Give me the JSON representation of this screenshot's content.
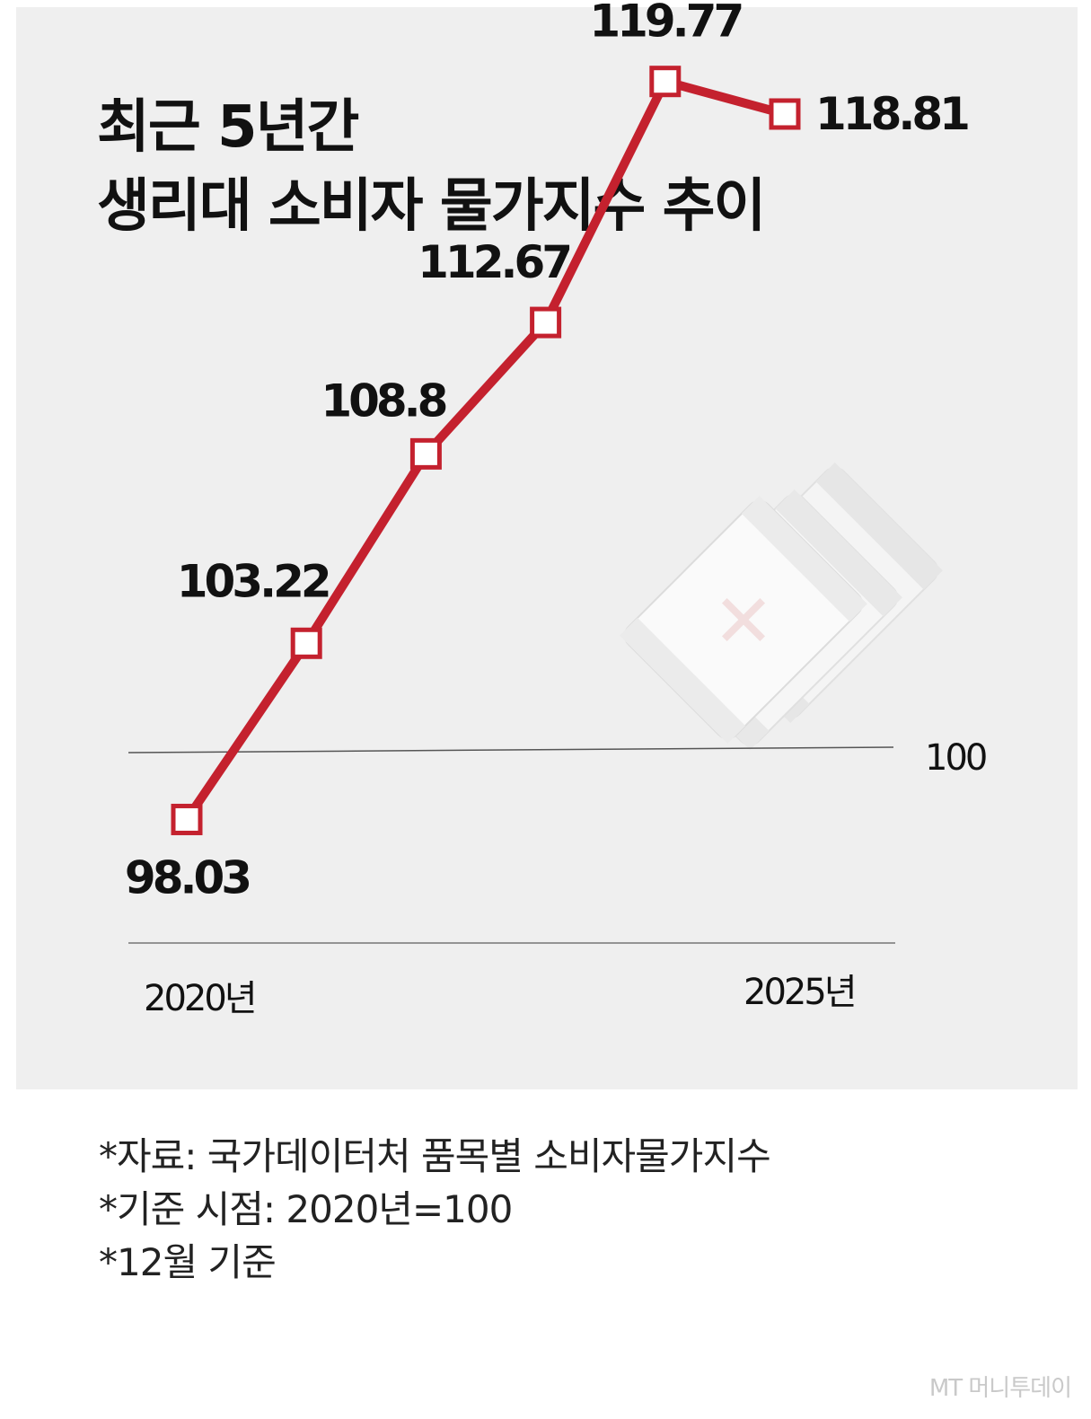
{
  "title": {
    "line1": "최근 5년간",
    "line2": "생리대 소비자 물가지수 추이"
  },
  "chart_data": {
    "type": "line",
    "x": [
      "2020",
      "2021",
      "2022",
      "2023",
      "2024",
      "2025"
    ],
    "values": [
      98.03,
      103.22,
      108.8,
      112.67,
      119.77,
      118.81
    ],
    "value_labels": [
      "98.03",
      "103.22",
      "108.8",
      "112.67",
      "119.77",
      "118.81"
    ],
    "x_tick_labels": {
      "first": "2020년",
      "last": "2025년"
    },
    "reference_line": {
      "value": 100,
      "label": "100"
    },
    "ylim": [
      95,
      120.5
    ],
    "grid": false,
    "colors": {
      "line": "#c4212e",
      "marker_fill": "#ffffff",
      "background": "#efefef",
      "reference": "#555555"
    }
  },
  "illustration": {
    "name": "sanitary-pad-packets"
  },
  "notes": [
    "*자료: 국가데이터처 품목별 소비자물가지수",
    "*기준 시점: 2020년=100",
    "*12월 기준"
  ],
  "credit": "MT 머니투데이"
}
